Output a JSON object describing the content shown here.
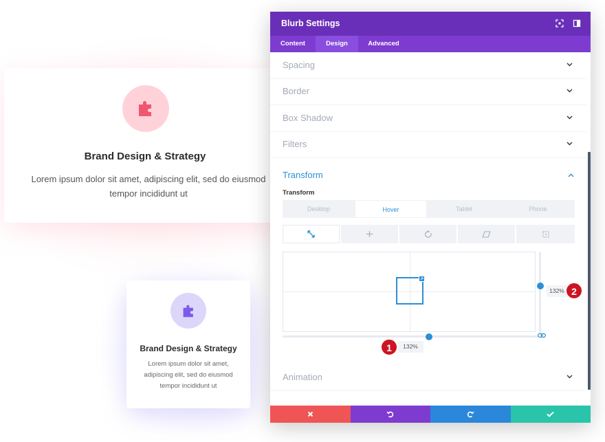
{
  "cards": [
    {
      "title": "Brand Design & Strategy",
      "body": "Lorem ipsum dolor sit amet, adipiscing elit, sed do eiusmod tempor incididunt ut",
      "icon": "puzzle-icon",
      "icon_color": "#f0566f",
      "circle_color": "#ffd2d9"
    },
    {
      "title": "Brand Design & Strategy",
      "body": "Lorem ipsum dolor sit amet, adipiscing elit, sed do eiusmod tempor incididunt ut",
      "icon": "puzzle-icon",
      "icon_color": "#7b5ce8",
      "circle_color": "#dcd6fb"
    }
  ],
  "panel": {
    "title": "Blurb Settings",
    "header_icons": [
      "expand-icon",
      "sidebar-icon"
    ],
    "tabs": [
      {
        "label": "Content",
        "active": false
      },
      {
        "label": "Design",
        "active": true
      },
      {
        "label": "Advanced",
        "active": false
      }
    ],
    "sections_top": [
      {
        "label": "Spacing"
      },
      {
        "label": "Border"
      },
      {
        "label": "Box Shadow"
      },
      {
        "label": "Filters"
      }
    ],
    "transform": {
      "heading": "Transform",
      "sub_label": "Transform",
      "device_tabs": [
        {
          "label": "Desktop",
          "active": false
        },
        {
          "label": "Hover",
          "active": true
        },
        {
          "label": "Tablet",
          "active": false
        },
        {
          "label": "Phone",
          "active": false
        }
      ],
      "tool_tabs": [
        {
          "name": "scale-icon",
          "active": true
        },
        {
          "name": "translate-icon",
          "active": false
        },
        {
          "name": "rotate-icon",
          "active": false
        },
        {
          "name": "skew-icon",
          "active": false
        },
        {
          "name": "origin-icon",
          "active": false
        }
      ],
      "scale_x": "132%",
      "scale_y": "132%",
      "linked_icon": "link-icon"
    },
    "sections_bottom": [
      {
        "label": "Animation"
      }
    ],
    "accent": "#2d8fd5"
  },
  "annotations": {
    "badge1": "1",
    "badge2": "2"
  },
  "footer": [
    {
      "name": "cancel-icon",
      "color": "#ef5555"
    },
    {
      "name": "undo-icon",
      "color": "#7e3bd0"
    },
    {
      "name": "redo-icon",
      "color": "#2b87da"
    },
    {
      "name": "save-check-icon",
      "color": "#29c4a9"
    }
  ]
}
